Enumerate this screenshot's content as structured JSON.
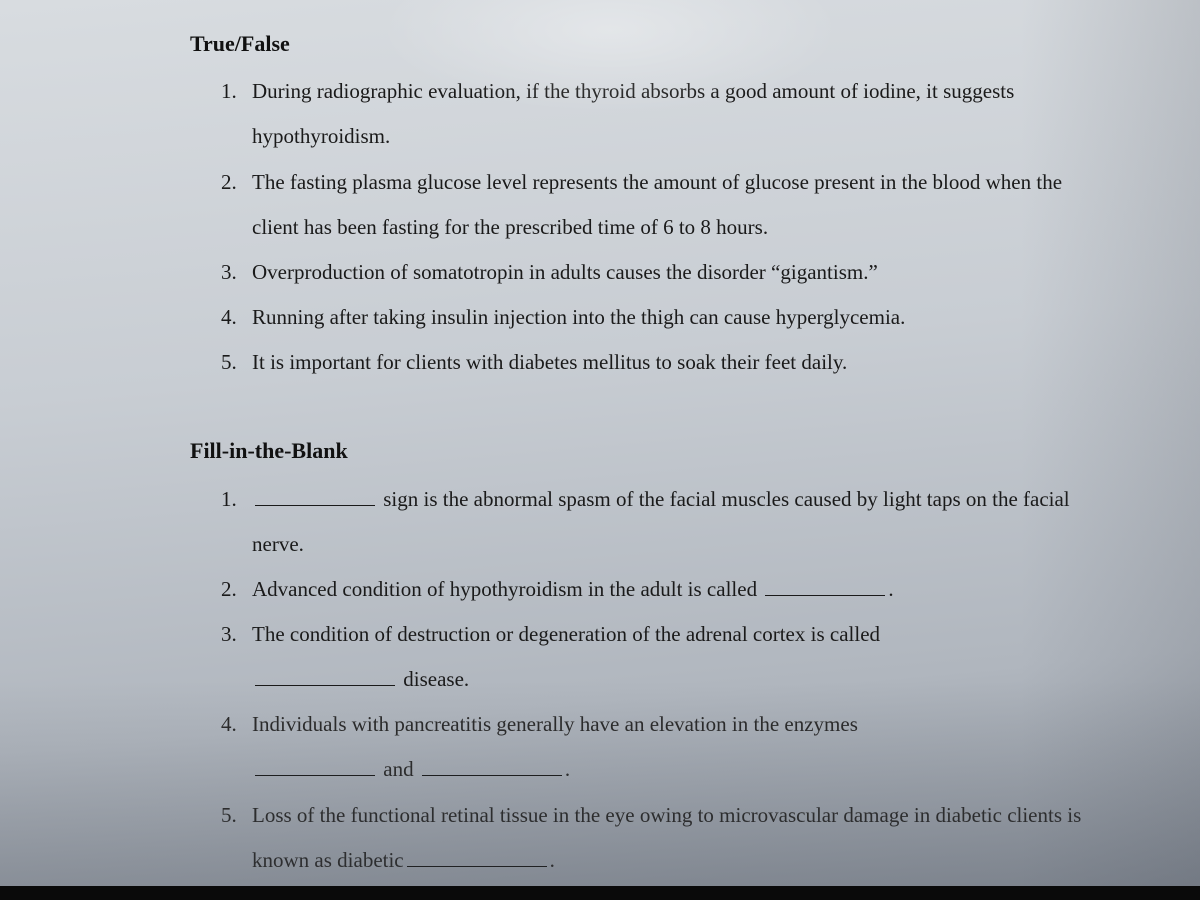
{
  "page": {
    "background_gradient": [
      "#d8dce0",
      "#c8cdd3",
      "#b0b6be",
      "#8a919b"
    ],
    "font_family": "Times New Roman",
    "body_fontsize": 21,
    "header_fontsize": 22,
    "line_height": 2.15,
    "text_color": "#1a1a1a"
  },
  "sections": {
    "true_false": {
      "header": "True/False",
      "items": [
        "During radiographic evaluation, if the thyroid absorbs a good amount of iodine, it suggests hypothyroidism.",
        "The fasting plasma glucose level represents the amount of glucose present in the blood when the client has been fasting for the prescribed time of 6 to 8 hours.",
        "Overproduction of somatotropin in adults causes the disorder “gigantism.”",
        "Running after taking insulin injection into the thigh can cause hyperglycemia.",
        "It is important for clients with diabetes mellitus to soak their feet daily."
      ]
    },
    "fill_blank": {
      "header": "Fill-in-the-Blank",
      "items": {
        "q1_after": " sign is the abnormal spasm of the facial muscles caused by light taps on the facial nerve.",
        "q2_before": "Advanced condition of hypothyroidism in the adult is called ",
        "q2_after": ".",
        "q3_before": "The condition of destruction or degeneration of the adrenal cortex is called ",
        "q3_after": " disease.",
        "q4_before": "Individuals with pancreatitis generally have an elevation in the enzymes ",
        "q4_mid": " and ",
        "q4_after": ".",
        "q5_before": "Loss of the functional retinal tissue in the eye owing to microvascular damage in diabetic clients is known as diabetic",
        "q5_after": "."
      }
    }
  }
}
